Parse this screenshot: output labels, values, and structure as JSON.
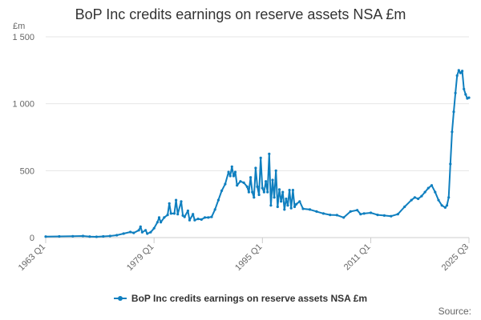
{
  "chart_data": {
    "type": "line",
    "title": "BoP Inc credits earnings on reserve assets NSA £m",
    "ylabel": "£m",
    "ylim": [
      0,
      1500
    ],
    "yticks": [
      0,
      500,
      1000,
      1500
    ],
    "ytick_labels": [
      "0",
      "500",
      "1 000",
      "1 500"
    ],
    "xlim": [
      1963.0,
      2025.5
    ],
    "xticks": [
      1963.0,
      1979.0,
      1995.0,
      2011.0,
      2025.5
    ],
    "xtick_labels": [
      "1963 Q1",
      "1979 Q1",
      "1995 Q1",
      "2011 Q1",
      "2025 Q3"
    ],
    "grid": "horizontal",
    "legend_position": "bottom",
    "color": "#0f7fbf",
    "series": [
      {
        "name": "BoP Inc credits earnings on reserve assets NSA £m",
        "points": [
          [
            1963.0,
            8
          ],
          [
            1965.0,
            9
          ],
          [
            1967.0,
            10
          ],
          [
            1968.5,
            12
          ],
          [
            1969.5,
            8
          ],
          [
            1970.5,
            6
          ],
          [
            1971.5,
            9
          ],
          [
            1972.5,
            12
          ],
          [
            1973.5,
            18
          ],
          [
            1974.5,
            30
          ],
          [
            1975.5,
            42
          ],
          [
            1976.0,
            35
          ],
          [
            1976.75,
            55
          ],
          [
            1977.0,
            82
          ],
          [
            1977.25,
            40
          ],
          [
            1977.75,
            55
          ],
          [
            1978.0,
            30
          ],
          [
            1978.5,
            40
          ],
          [
            1979.0,
            70
          ],
          [
            1979.5,
            115
          ],
          [
            1979.75,
            150
          ],
          [
            1980.0,
            115
          ],
          [
            1980.5,
            150
          ],
          [
            1981.0,
            170
          ],
          [
            1981.25,
            255
          ],
          [
            1981.5,
            180
          ],
          [
            1982.0,
            180
          ],
          [
            1982.25,
            280
          ],
          [
            1982.5,
            175
          ],
          [
            1983.0,
            270
          ],
          [
            1983.25,
            165
          ],
          [
            1983.5,
            155
          ],
          [
            1984.0,
            200
          ],
          [
            1984.25,
            130
          ],
          [
            1984.75,
            175
          ],
          [
            1985.0,
            130
          ],
          [
            1985.5,
            140
          ],
          [
            1986.0,
            135
          ],
          [
            1986.5,
            150
          ],
          [
            1987.0,
            150
          ],
          [
            1987.5,
            155
          ],
          [
            1988.0,
            210
          ],
          [
            1988.5,
            280
          ],
          [
            1989.0,
            350
          ],
          [
            1989.5,
            400
          ],
          [
            1990.0,
            490
          ],
          [
            1990.25,
            460
          ],
          [
            1990.5,
            530
          ],
          [
            1990.75,
            460
          ],
          [
            1991.0,
            490
          ],
          [
            1991.25,
            390
          ],
          [
            1991.75,
            420
          ],
          [
            1992.25,
            410
          ],
          [
            1992.75,
            380
          ],
          [
            1993.0,
            340
          ],
          [
            1993.25,
            450
          ],
          [
            1993.5,
            340
          ],
          [
            1993.75,
            300
          ],
          [
            1994.0,
            520
          ],
          [
            1994.25,
            380
          ],
          [
            1994.5,
            320
          ],
          [
            1994.75,
            595
          ],
          [
            1995.0,
            370
          ],
          [
            1995.25,
            340
          ],
          [
            1995.5,
            420
          ],
          [
            1995.75,
            340
          ],
          [
            1996.0,
            625
          ],
          [
            1996.25,
            240
          ],
          [
            1996.5,
            430
          ],
          [
            1996.75,
            300
          ],
          [
            1997.0,
            500
          ],
          [
            1997.25,
            230
          ],
          [
            1997.5,
            360
          ],
          [
            1997.75,
            270
          ],
          [
            1998.0,
            340
          ],
          [
            1998.25,
            210
          ],
          [
            1998.5,
            290
          ],
          [
            1998.75,
            240
          ],
          [
            1999.0,
            355
          ],
          [
            1999.25,
            220
          ],
          [
            1999.5,
            355
          ],
          [
            1999.75,
            230
          ],
          [
            2000.0,
            250
          ],
          [
            2000.5,
            270
          ],
          [
            2001.0,
            215
          ],
          [
            2002.0,
            210
          ],
          [
            2003.0,
            195
          ],
          [
            2004.0,
            180
          ],
          [
            2005.0,
            170
          ],
          [
            2006.0,
            168
          ],
          [
            2007.0,
            150
          ],
          [
            2008.0,
            195
          ],
          [
            2009.0,
            205
          ],
          [
            2009.5,
            175
          ],
          [
            2010.0,
            180
          ],
          [
            2011.0,
            185
          ],
          [
            2012.0,
            170
          ],
          [
            2013.0,
            165
          ],
          [
            2014.0,
            160
          ],
          [
            2015.0,
            175
          ],
          [
            2016.0,
            230
          ],
          [
            2017.0,
            280
          ],
          [
            2017.5,
            300
          ],
          [
            2018.0,
            290
          ],
          [
            2018.5,
            310
          ],
          [
            2019.0,
            340
          ],
          [
            2019.5,
            370
          ],
          [
            2020.0,
            390
          ],
          [
            2020.5,
            340
          ],
          [
            2021.0,
            280
          ],
          [
            2021.5,
            240
          ],
          [
            2022.0,
            225
          ],
          [
            2022.25,
            240
          ],
          [
            2022.5,
            300
          ],
          [
            2022.75,
            550
          ],
          [
            2023.0,
            790
          ],
          [
            2023.25,
            940
          ],
          [
            2023.5,
            1080
          ],
          [
            2023.75,
            1210
          ],
          [
            2024.0,
            1250
          ],
          [
            2024.25,
            1230
          ],
          [
            2024.5,
            1245
          ],
          [
            2024.75,
            1110
          ],
          [
            2025.0,
            1070
          ],
          [
            2025.25,
            1040
          ],
          [
            2025.5,
            1045
          ]
        ]
      }
    ],
    "source_label": "Source:"
  }
}
